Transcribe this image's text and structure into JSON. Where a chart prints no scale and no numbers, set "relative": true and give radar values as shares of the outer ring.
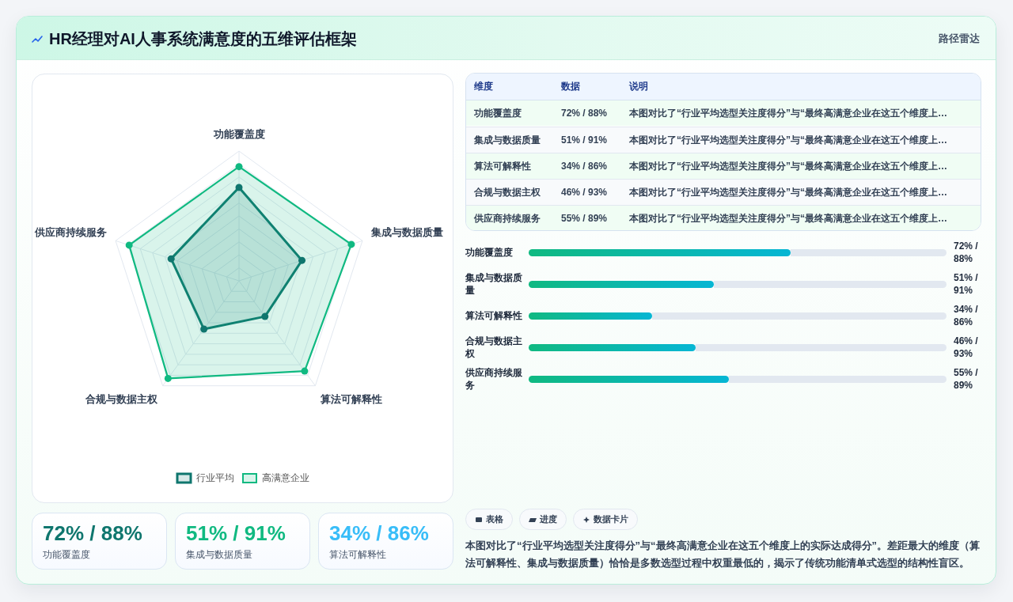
{
  "chart_data": [
    {
      "type": "other",
      "title": "HR经理对AI人事系统满意度的五维评估框架",
      "subtitle": "路径雷达"
    },
    {
      "type": "radar",
      "relative": true,
      "categories": [
        "功能覆盖度",
        "集成与数据质量",
        "算法可解释性",
        "合规与数据主权",
        "供应商持续服务"
      ],
      "series": [
        {
          "name": "行业平均",
          "color": "#0f766e",
          "values": [
            0.72,
            0.51,
            0.34,
            0.46,
            0.55
          ]
        },
        {
          "name": "高满意企业",
          "color": "#10b981",
          "values": [
            0.88,
            0.91,
            0.86,
            0.93,
            0.89
          ]
        }
      ],
      "grid": true,
      "legend": "bottom",
      "marker": "circle"
    },
    {
      "type": "other",
      "categories": [
        "维度",
        "数据",
        "说明"
      ],
      "y_categories": [
        "功能覆盖度",
        "集成与数据质量",
        "算法可解释性",
        "合规与数据主权",
        "供应商持续服务"
      ],
      "cell_labels": [
        [
          "72% / 88%",
          "本图对比了“行业平均选型关注度得分”与“最终高满意企业在这五个维度上…"
        ],
        [
          "51% / 91%",
          "本图对比了“行业平均选型关注度得分”与“最终高满意企业在这五个维度上…"
        ],
        [
          "34% / 86%",
          "本图对比了“行业平均选型关注度得分”与“最终高满意企业在这五个维度上…"
        ],
        [
          "46% / 93%",
          "本图对比了“行业平均选型关注度得分”与“最终高满意企业在这五个维度上…"
        ],
        [
          "55% / 89%",
          "本图对比了“行业平均选型关注度得分”与“最终高满意企业在这五个维度上…"
        ]
      ]
    },
    {
      "type": "bar",
      "orientation": "horizontal",
      "categories": [
        "功能覆盖度",
        "集成与数据质量",
        "算法可解释性",
        "合规与数据主权",
        "供应商持续服务"
      ],
      "values": [
        72,
        51,
        34,
        46,
        55
      ],
      "value_labels": [
        "72% / 88%",
        "51% / 91%",
        "34% / 86%",
        "46% / 93%",
        "55% / 89%"
      ],
      "color": "#10b981",
      "xlim": [
        0,
        115
      ],
      "tick_labels": "y"
    },
    {
      "type": "other",
      "categories": [
        "功能覆盖度",
        "集成与数据质量",
        "算法可解释性"
      ],
      "value_labels": [
        "72% / 88%",
        "51% / 91%",
        "34% / 86%"
      ]
    },
    {
      "type": "other",
      "categories": [
        "表格",
        "进度",
        "数据卡片"
      ],
      "annotations": [
        "本图对比了“行业平均选型关注度得分”与“最终高满意企业在这五个维度上的实际达成得分”。差距最大的维度（算法可解释性、集成与数据质量）恰恰是多数选型过程中权重最低的，揭示了传统功能清单式选型的结构性盲区。"
      ]
    }
  ]
}
